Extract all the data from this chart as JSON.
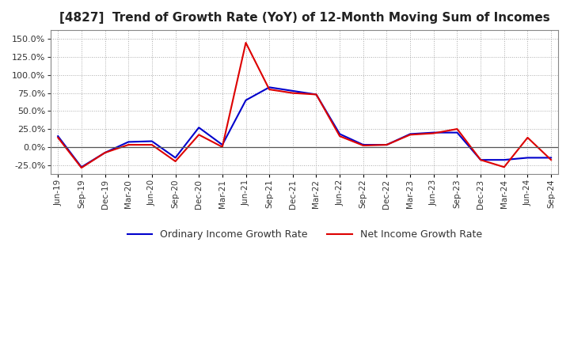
{
  "title": "[4827]  Trend of Growth Rate (YoY) of 12-Month Moving Sum of Incomes",
  "ylim": [
    -37.5,
    162.5
  ],
  "yticks": [
    -25.0,
    0.0,
    25.0,
    50.0,
    75.0,
    100.0,
    125.0,
    150.0
  ],
  "background_color": "#ffffff",
  "plot_bg_color": "#ffffff",
  "grid_color": "#aaaaaa",
  "ordinary_color": "#0000cc",
  "net_color": "#dd0000",
  "legend_ordinary": "Ordinary Income Growth Rate",
  "legend_net": "Net Income Growth Rate",
  "dates": [
    "Jun-19",
    "Sep-19",
    "Dec-19",
    "Mar-20",
    "Jun-20",
    "Sep-20",
    "Dec-20",
    "Mar-21",
    "Jun-21",
    "Sep-21",
    "Dec-21",
    "Mar-22",
    "Jun-22",
    "Sep-22",
    "Dec-22",
    "Mar-23",
    "Jun-23",
    "Sep-23",
    "Dec-23",
    "Mar-24",
    "Jun-24",
    "Sep-24"
  ],
  "ordinary": [
    15.0,
    -28.0,
    -8.0,
    7.0,
    8.0,
    -15.0,
    27.0,
    3.0,
    65.0,
    83.0,
    78.0,
    73.0,
    18.0,
    3.0,
    3.0,
    18.0,
    20.0,
    20.0,
    -18.0,
    -18.0,
    -15.0,
    -15.0
  ],
  "net": [
    13.0,
    -29.0,
    -8.0,
    3.0,
    3.0,
    -20.0,
    17.0,
    0.0,
    145.0,
    80.0,
    75.0,
    73.0,
    15.0,
    2.0,
    3.0,
    17.0,
    19.0,
    25.0,
    -18.0,
    -28.0,
    13.0,
    -18.0
  ]
}
